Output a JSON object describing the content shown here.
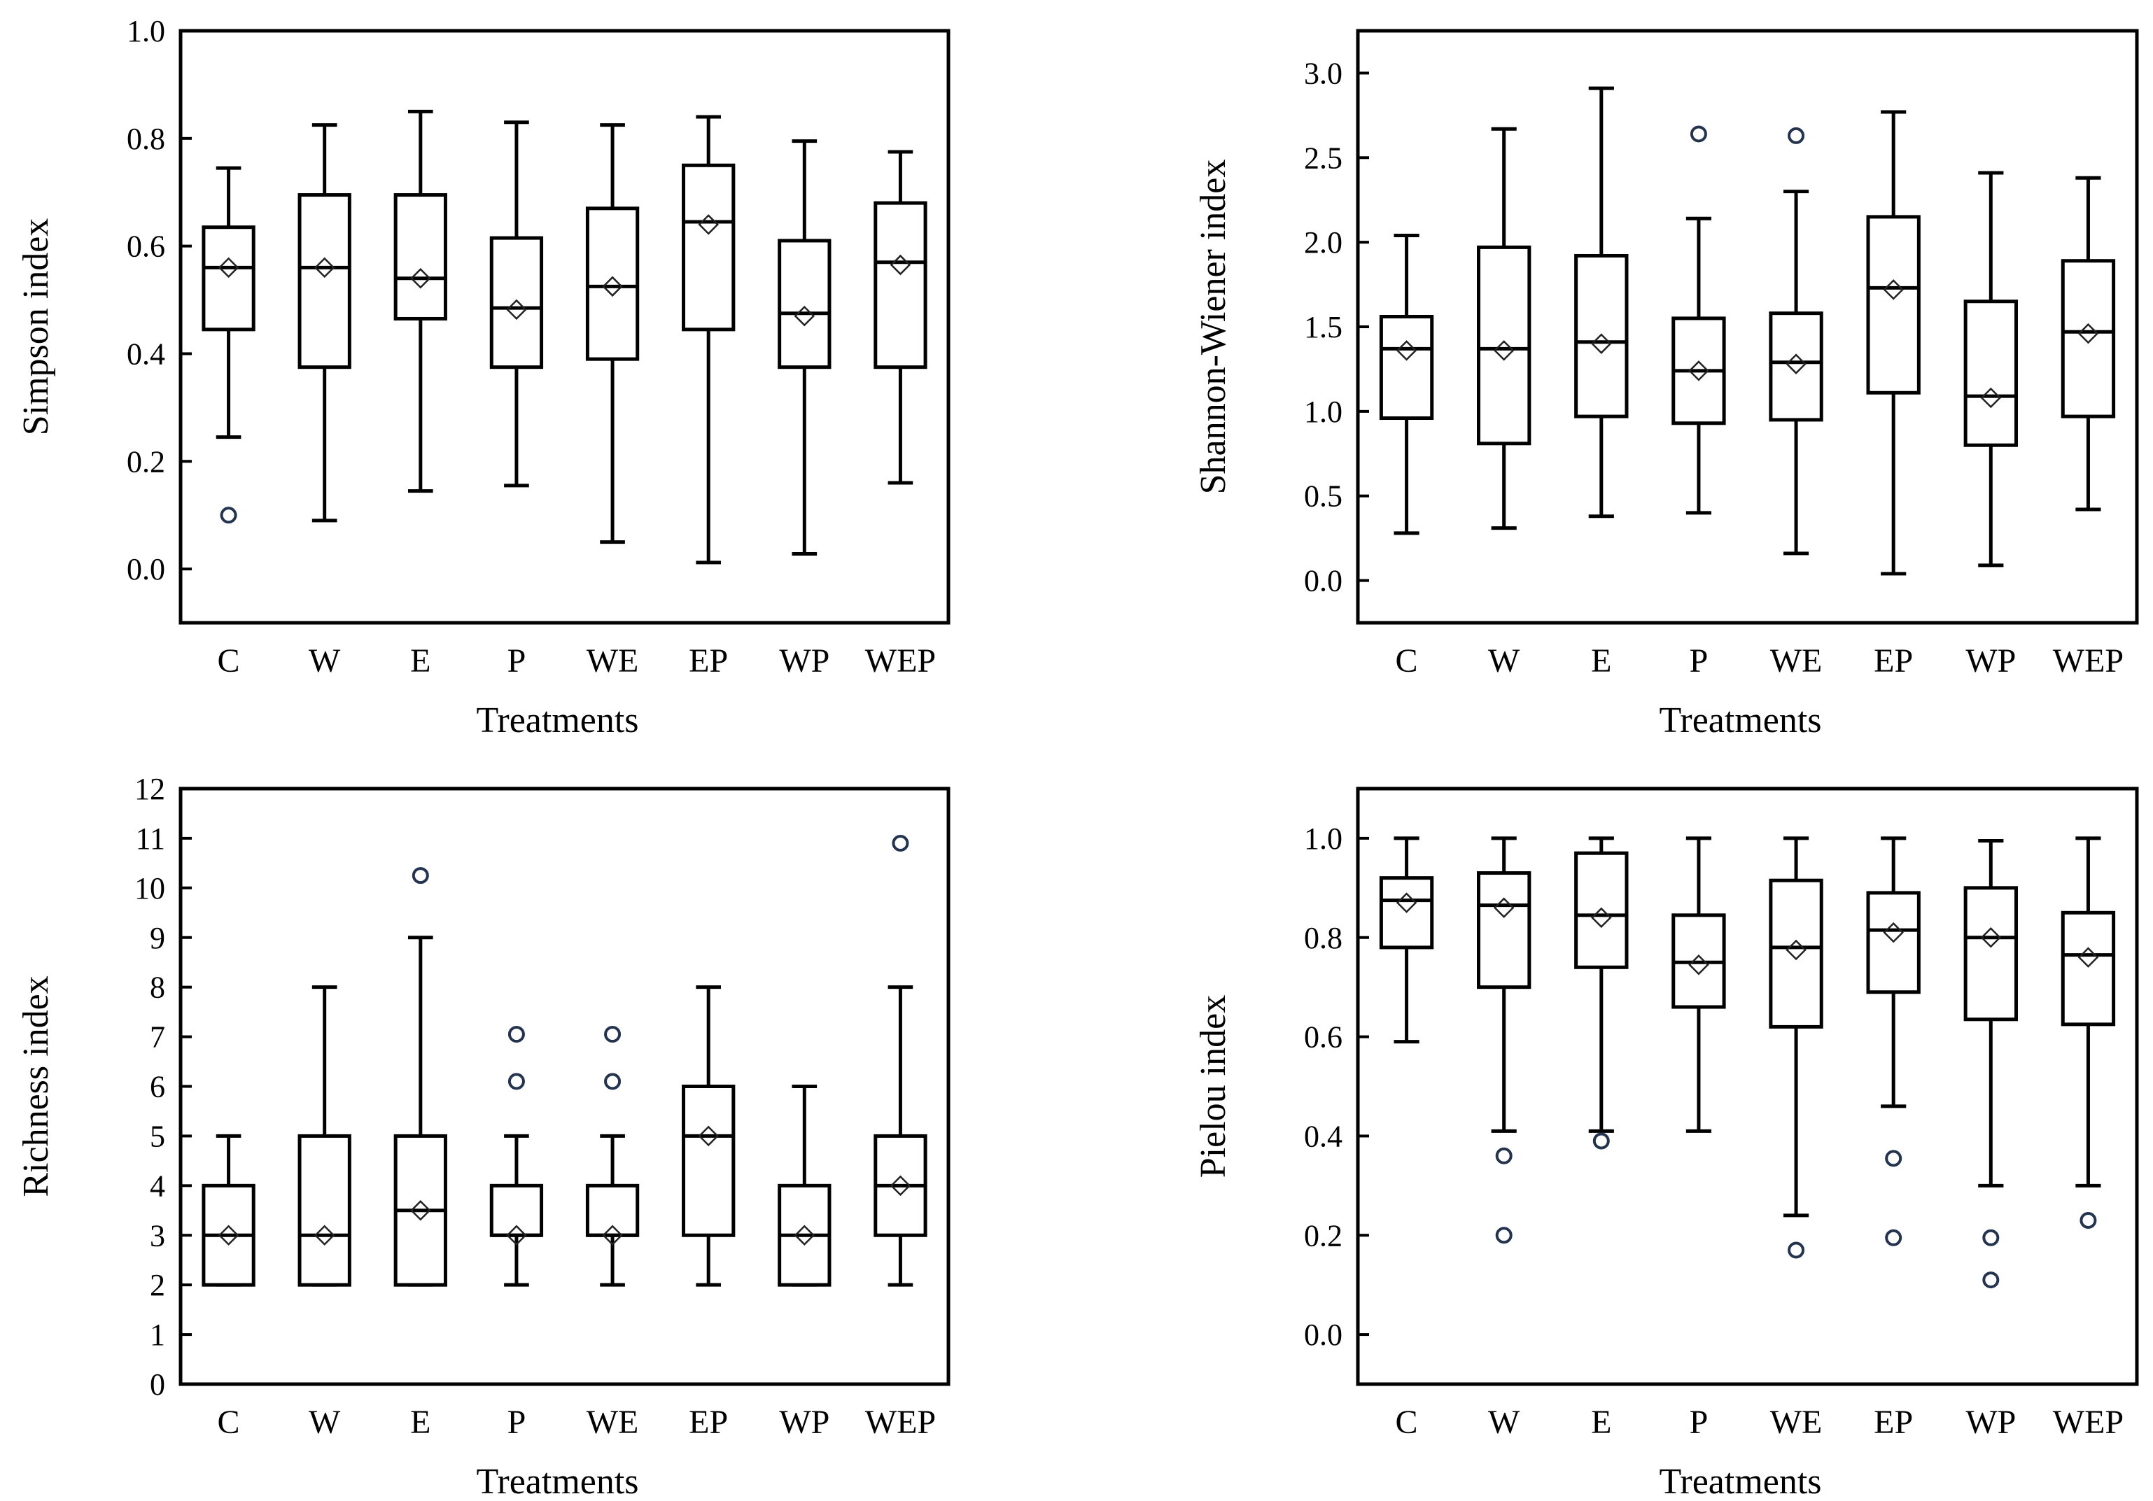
{
  "chart_data": [
    {
      "type": "boxplot",
      "xlabel": "Treatments",
      "ylabel": "Simpson  index",
      "ylim": [
        -0.1,
        1.0
      ],
      "yticks": [
        0.0,
        0.2,
        0.4,
        0.6,
        0.8,
        1.0
      ],
      "ytick_labels": [
        "0.0",
        "0.2",
        "0.4",
        "0.6",
        "0.8",
        "1.0"
      ],
      "categories": [
        "C",
        "W",
        "E",
        "P",
        "WE",
        "EP",
        "WP",
        "WEP"
      ],
      "boxes": [
        {
          "min": 0.245,
          "q1": 0.445,
          "median": 0.56,
          "q3": 0.635,
          "max": 0.745,
          "mean": 0.56,
          "outliers": [
            0.1
          ]
        },
        {
          "min": 0.09,
          "q1": 0.375,
          "median": 0.56,
          "q3": 0.695,
          "max": 0.825,
          "mean": 0.56,
          "outliers": []
        },
        {
          "min": 0.145,
          "q1": 0.465,
          "median": 0.54,
          "q3": 0.695,
          "max": 0.85,
          "mean": 0.54,
          "outliers": []
        },
        {
          "min": 0.155,
          "q1": 0.375,
          "median": 0.485,
          "q3": 0.615,
          "max": 0.83,
          "mean": 0.482,
          "outliers": []
        },
        {
          "min": 0.05,
          "q1": 0.39,
          "median": 0.525,
          "q3": 0.67,
          "max": 0.825,
          "mean": 0.525,
          "outliers": []
        },
        {
          "min": 0.012,
          "q1": 0.445,
          "median": 0.645,
          "q3": 0.75,
          "max": 0.84,
          "mean": 0.64,
          "outliers": []
        },
        {
          "min": 0.028,
          "q1": 0.375,
          "median": 0.475,
          "q3": 0.61,
          "max": 0.795,
          "mean": 0.47,
          "outliers": []
        },
        {
          "min": 0.16,
          "q1": 0.375,
          "median": 0.57,
          "q3": 0.68,
          "max": 0.775,
          "mean": 0.565,
          "outliers": []
        }
      ]
    },
    {
      "type": "boxplot",
      "xlabel": "Treatments",
      "ylabel": "Shannon-Wiener  index",
      "ylim": [
        -0.25,
        3.25
      ],
      "yticks": [
        0.0,
        0.5,
        1.0,
        1.5,
        2.0,
        2.5,
        3.0
      ],
      "ytick_labels": [
        "0.0",
        "0.5",
        "1.0",
        "1.5",
        "2.0",
        "2.5",
        "3.0"
      ],
      "categories": [
        "C",
        "W",
        "E",
        "P",
        "WE",
        "EP",
        "WP",
        "WEP"
      ],
      "boxes": [
        {
          "min": 0.28,
          "q1": 0.96,
          "median": 1.37,
          "q3": 1.56,
          "max": 2.04,
          "mean": 1.36,
          "outliers": []
        },
        {
          "min": 0.31,
          "q1": 0.81,
          "median": 1.37,
          "q3": 1.97,
          "max": 2.67,
          "mean": 1.36,
          "outliers": []
        },
        {
          "min": 0.38,
          "q1": 0.97,
          "median": 1.41,
          "q3": 1.92,
          "max": 2.91,
          "mean": 1.4,
          "outliers": []
        },
        {
          "min": 0.4,
          "q1": 0.93,
          "median": 1.24,
          "q3": 1.55,
          "max": 2.14,
          "mean": 1.24,
          "outliers": [
            2.64
          ]
        },
        {
          "min": 0.16,
          "q1": 0.95,
          "median": 1.29,
          "q3": 1.58,
          "max": 2.3,
          "mean": 1.28,
          "outliers": [
            2.63
          ]
        },
        {
          "min": 0.04,
          "q1": 1.11,
          "median": 1.73,
          "q3": 2.15,
          "max": 2.77,
          "mean": 1.72,
          "outliers": []
        },
        {
          "min": 0.09,
          "q1": 0.8,
          "median": 1.09,
          "q3": 1.65,
          "max": 2.41,
          "mean": 1.08,
          "outliers": []
        },
        {
          "min": 0.42,
          "q1": 0.97,
          "median": 1.47,
          "q3": 1.89,
          "max": 2.38,
          "mean": 1.46,
          "outliers": []
        }
      ]
    },
    {
      "type": "boxplot",
      "xlabel": "Treatments",
      "ylabel": "Richness  index",
      "ylim": [
        0,
        12
      ],
      "yticks": [
        0,
        1,
        2,
        3,
        4,
        5,
        6,
        7,
        8,
        9,
        10,
        11,
        12
      ],
      "ytick_labels": [
        "0",
        "1",
        "2",
        "3",
        "4",
        "5",
        "6",
        "7",
        "8",
        "9",
        "10",
        "11",
        "12"
      ],
      "categories": [
        "C",
        "W",
        "E",
        "P",
        "WE",
        "EP",
        "WP",
        "WEP"
      ],
      "boxes": [
        {
          "min": 2,
          "q1": 2,
          "median": 3,
          "q3": 4,
          "max": 5,
          "mean": 3.0,
          "outliers": []
        },
        {
          "min": 2,
          "q1": 2,
          "median": 3,
          "q3": 5,
          "max": 8,
          "mean": 3.0,
          "outliers": []
        },
        {
          "min": 2,
          "q1": 2,
          "median": 3.5,
          "q3": 5,
          "max": 9,
          "mean": 3.5,
          "outliers": [
            10.25
          ]
        },
        {
          "min": 2,
          "q1": 3,
          "median": 3,
          "q3": 4,
          "max": 5,
          "mean": 3.0,
          "outliers": [
            6.1,
            7.05
          ]
        },
        {
          "min": 2,
          "q1": 3,
          "median": 3,
          "q3": 4,
          "max": 5,
          "mean": 3.0,
          "outliers": [
            6.1,
            7.05
          ]
        },
        {
          "min": 2,
          "q1": 3,
          "median": 5,
          "q3": 6,
          "max": 8,
          "mean": 5.0,
          "outliers": []
        },
        {
          "min": 2,
          "q1": 2,
          "median": 3,
          "q3": 4,
          "max": 6,
          "mean": 3.0,
          "outliers": []
        },
        {
          "min": 2,
          "q1": 3,
          "median": 4,
          "q3": 5,
          "max": 8,
          "mean": 4.0,
          "outliers": [
            10.9
          ]
        }
      ]
    },
    {
      "type": "boxplot",
      "xlabel": "Treatments",
      "ylabel": "Pielou  index",
      "ylim": [
        -0.1,
        1.1
      ],
      "yticks": [
        0.0,
        0.2,
        0.4,
        0.6,
        0.8,
        1.0
      ],
      "ytick_labels": [
        "0.0",
        "0.2",
        "0.4",
        "0.6",
        "0.8",
        "1.0"
      ],
      "categories": [
        "C",
        "W",
        "E",
        "P",
        "WE",
        "EP",
        "WP",
        "WEP"
      ],
      "boxes": [
        {
          "min": 0.59,
          "q1": 0.78,
          "median": 0.875,
          "q3": 0.92,
          "max": 1.0,
          "mean": 0.87,
          "outliers": []
        },
        {
          "min": 0.41,
          "q1": 0.7,
          "median": 0.865,
          "q3": 0.93,
          "max": 1.0,
          "mean": 0.86,
          "outliers": [
            0.36,
            0.2
          ]
        },
        {
          "min": 0.41,
          "q1": 0.74,
          "median": 0.845,
          "q3": 0.97,
          "max": 1.0,
          "mean": 0.84,
          "outliers": [
            0.39
          ]
        },
        {
          "min": 0.41,
          "q1": 0.66,
          "median": 0.75,
          "q3": 0.845,
          "max": 1.0,
          "mean": 0.745,
          "outliers": []
        },
        {
          "min": 0.24,
          "q1": 0.62,
          "median": 0.78,
          "q3": 0.915,
          "max": 1.0,
          "mean": 0.775,
          "outliers": [
            0.17
          ]
        },
        {
          "min": 0.46,
          "q1": 0.69,
          "median": 0.815,
          "q3": 0.89,
          "max": 1.0,
          "mean": 0.81,
          "outliers": [
            0.355,
            0.195
          ]
        },
        {
          "min": 0.3,
          "q1": 0.635,
          "median": 0.8,
          "q3": 0.9,
          "max": 0.995,
          "mean": 0.8,
          "outliers": [
            0.195,
            0.11
          ]
        },
        {
          "min": 0.3,
          "q1": 0.625,
          "median": 0.765,
          "q3": 0.85,
          "max": 1.0,
          "mean": 0.76,
          "outliers": [
            0.23
          ]
        }
      ]
    }
  ],
  "colors": {
    "axis": "#000000",
    "box": "#000000",
    "outlier": "#24344f",
    "mean_marker": "#222222"
  }
}
